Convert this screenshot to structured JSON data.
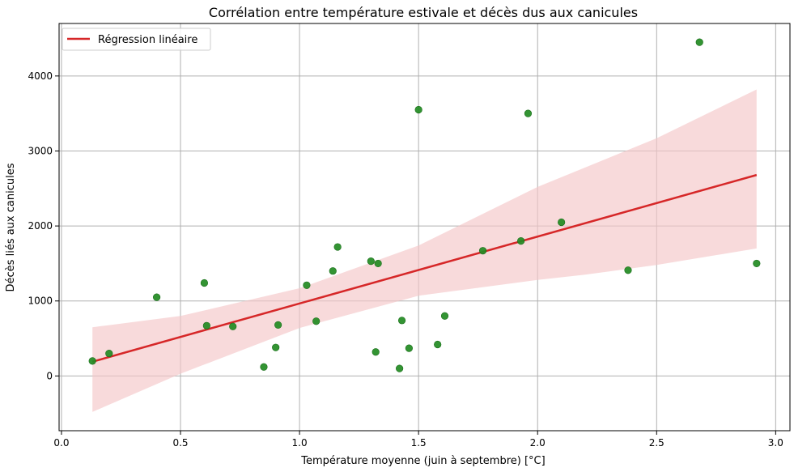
{
  "chart_data": {
    "type": "scatter",
    "title": "Corrélation entre température estivale et décès dus aux canicules",
    "xlabel": "Température moyenne (juin à septembre) [°C]",
    "ylabel": "Décès liés aux canicules",
    "xlim": [
      -0.01,
      3.06
    ],
    "ylim": [
      -730,
      4700
    ],
    "x_ticks": [
      0.0,
      0.5,
      1.0,
      1.5,
      2.0,
      2.5,
      3.0
    ],
    "x_tick_labels": [
      "0.0",
      "0.5",
      "1.0",
      "1.5",
      "2.0",
      "2.5",
      "3.0"
    ],
    "y_ticks": [
      0,
      1000,
      2000,
      3000,
      4000
    ],
    "y_tick_labels": [
      "0",
      "1000",
      "2000",
      "3000",
      "4000"
    ],
    "grid": true,
    "legend_position": "top-left",
    "colors": {
      "points": "#228B22",
      "regression": "#d62728",
      "band": "#f4c6c8",
      "grid": "#b0b0b0"
    },
    "series": [
      {
        "kind": "scatter",
        "x": [
          0.13,
          0.2,
          0.4,
          0.6,
          0.61,
          0.72,
          0.85,
          0.9,
          0.91,
          1.03,
          1.07,
          1.14,
          1.16,
          1.3,
          1.32,
          1.33,
          1.42,
          1.43,
          1.46,
          1.5,
          1.58,
          1.61,
          1.77,
          1.93,
          1.96,
          2.1,
          2.38,
          2.68,
          2.92
        ],
        "y": [
          200,
          300,
          1050,
          1240,
          670,
          660,
          120,
          380,
          680,
          1210,
          730,
          1400,
          1720,
          1530,
          320,
          1500,
          100,
          740,
          370,
          3550,
          420,
          800,
          1670,
          1800,
          3500,
          2050,
          1410,
          4450,
          1500
        ]
      },
      {
        "kind": "line",
        "name": "Régression linéaire",
        "x": [
          0.13,
          2.92
        ],
        "y": [
          190,
          2680
        ]
      },
      {
        "kind": "band",
        "x": [
          0.13,
          0.5,
          1.0,
          1.5,
          2.0,
          2.2,
          2.5,
          2.92
        ],
        "lower": [
          -480,
          30,
          640,
          1070,
          1280,
          1350,
          1480,
          1700
        ],
        "upper": [
          650,
          800,
          1170,
          1740,
          2520,
          2780,
          3170,
          3820
        ]
      }
    ]
  }
}
